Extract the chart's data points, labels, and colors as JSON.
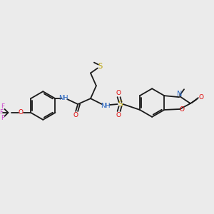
{
  "bg_color": "#ebebeb",
  "bond_color": "#1a1a1a",
  "colors": {
    "N": "#2060c0",
    "O": "#e00000",
    "S_thio": "#b8a000",
    "S_sulfo": "#b8a000",
    "F": "#cc44cc",
    "C": "#1a1a1a",
    "NH": "#2060c0"
  },
  "figsize": [
    3.0,
    3.0
  ],
  "dpi": 100
}
